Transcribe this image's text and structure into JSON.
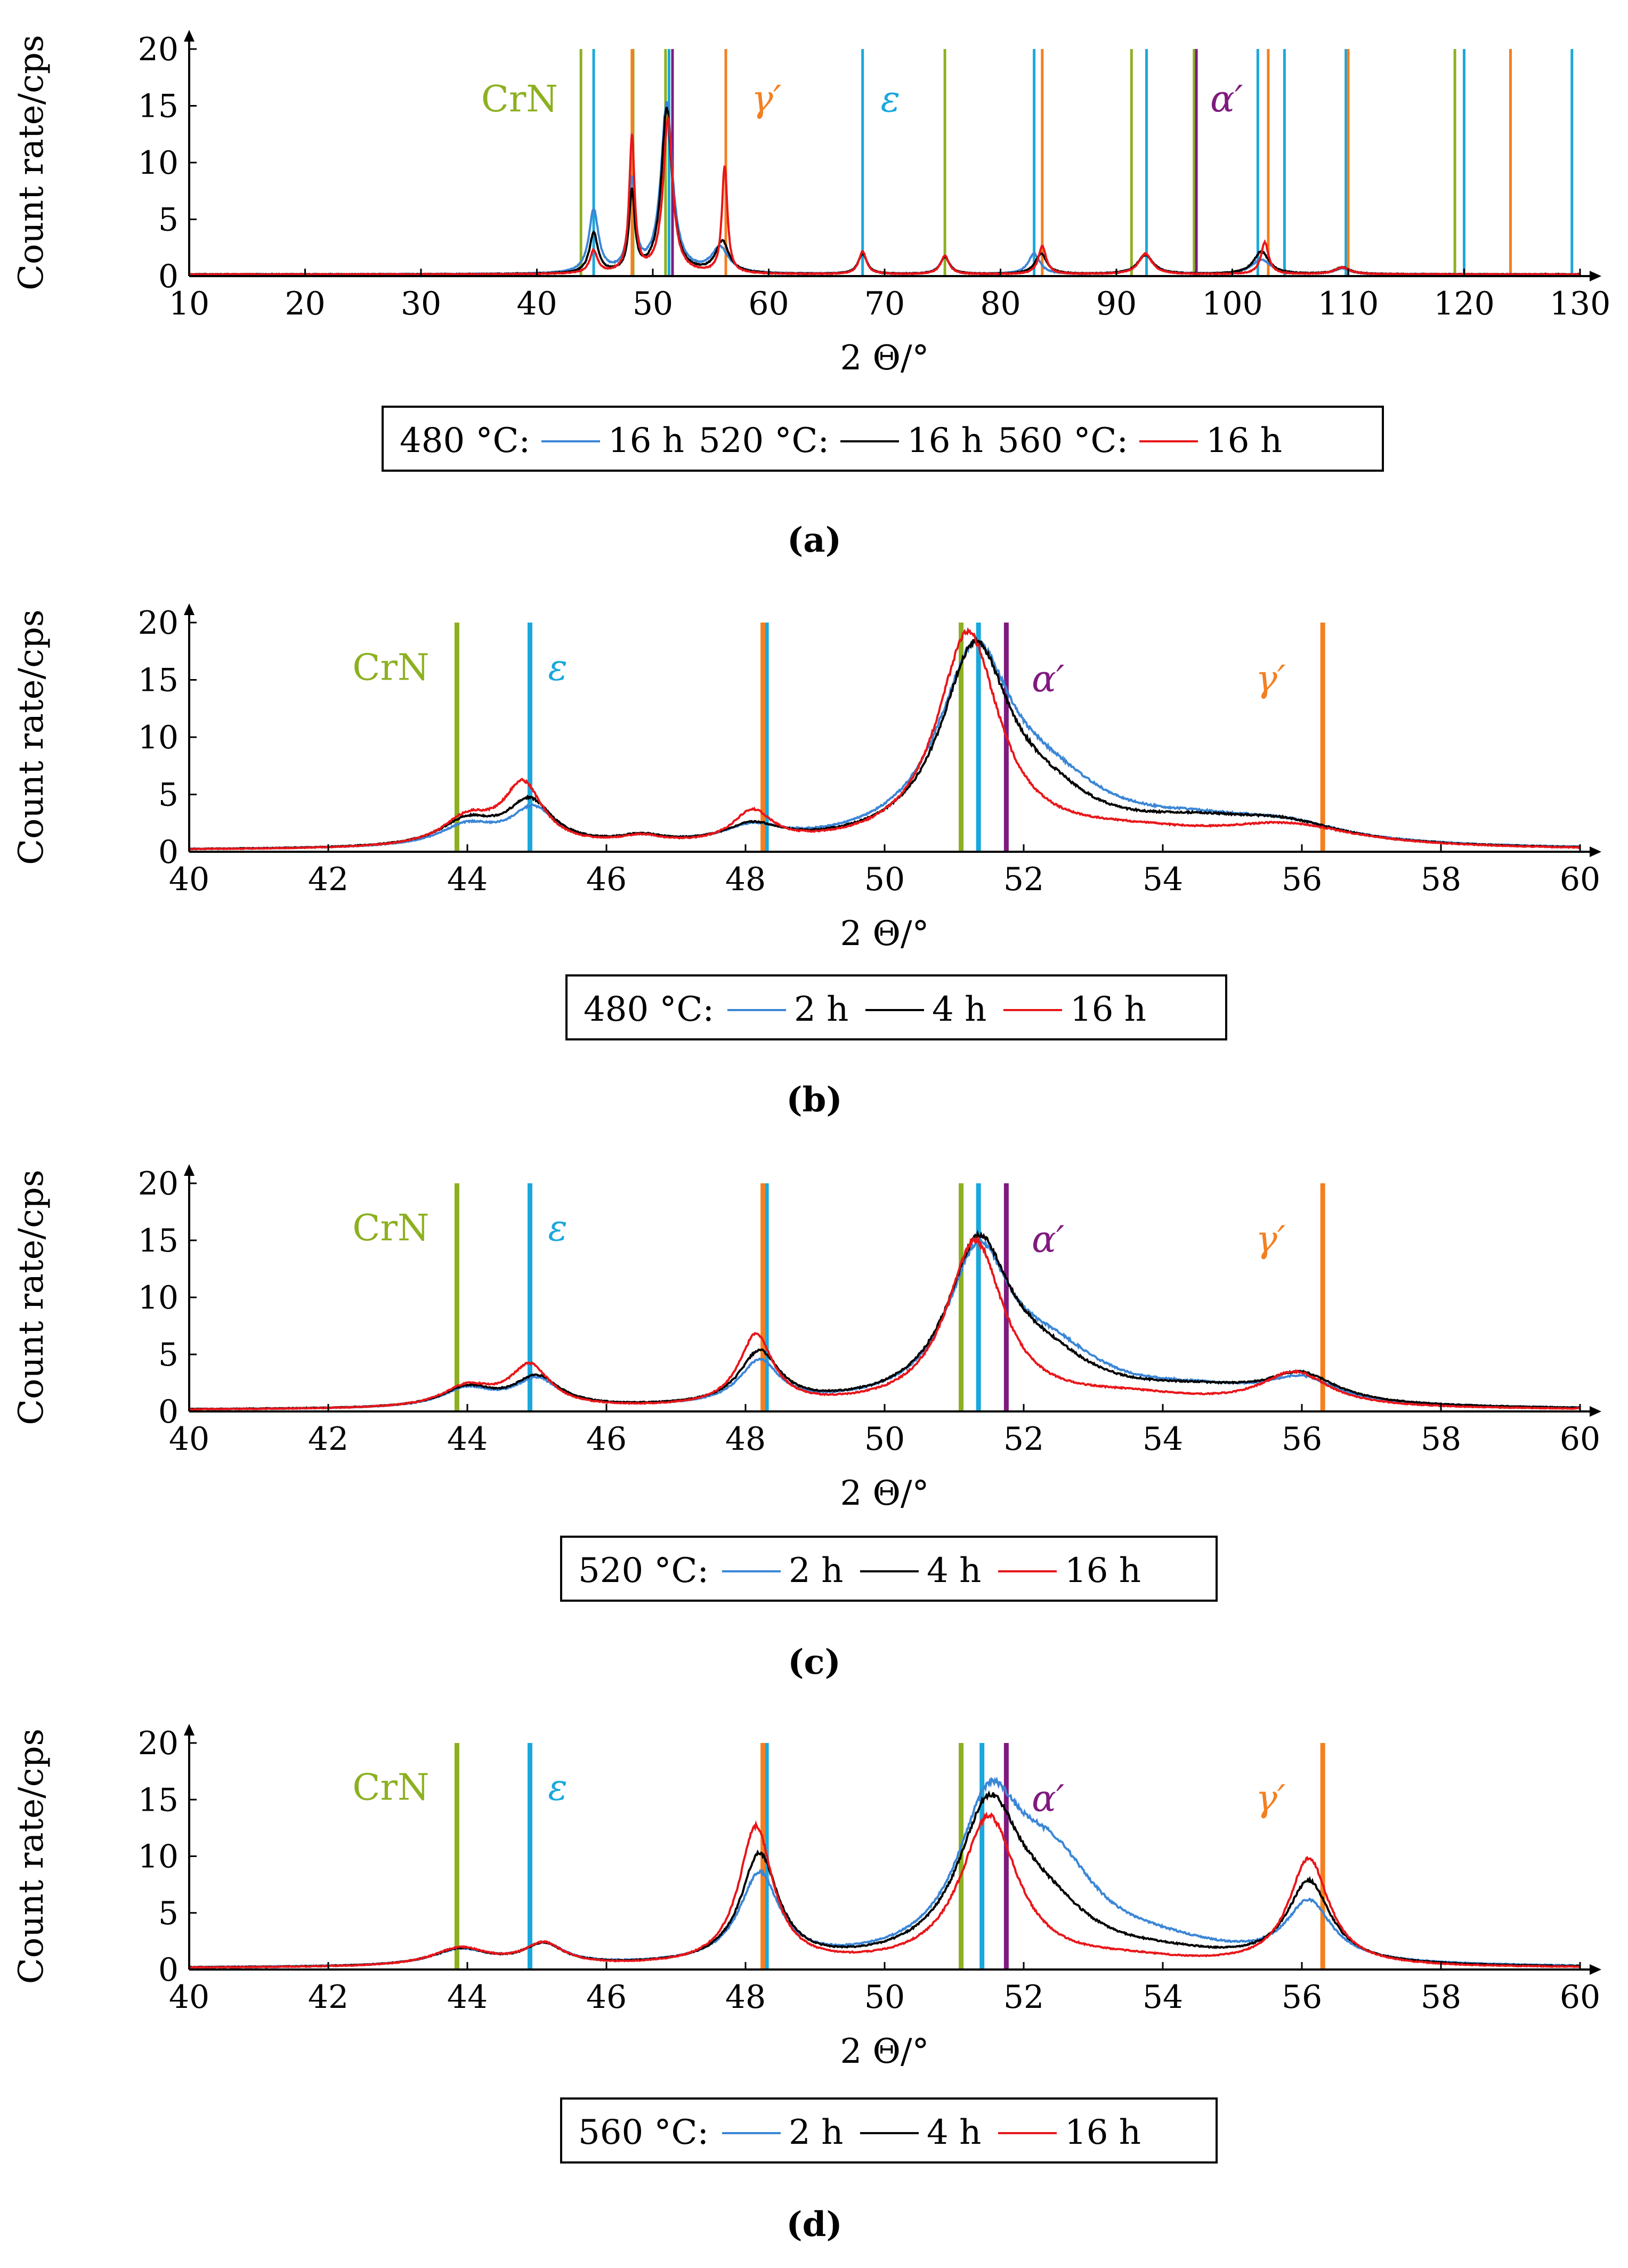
{
  "colors": {
    "blue": "#3b86d6",
    "black": "#000000",
    "red": "#e8161a",
    "crn": "#8db021",
    "epsilon": "#1aa8dc",
    "gamma": "#f47f20",
    "alpha": "#7f1a7f"
  },
  "chart_data": [
    {
      "id": "a",
      "type": "line",
      "caption": "(a)",
      "xlabel": "2 Θ/°",
      "ylabel": "Count rate/cps",
      "xlim": [
        10,
        130
      ],
      "ylim": [
        0,
        20
      ],
      "xticks": [
        10,
        20,
        30,
        40,
        50,
        60,
        70,
        80,
        90,
        100,
        110,
        120,
        130
      ],
      "yticks": [
        0,
        5,
        10,
        15,
        20
      ],
      "legend": {
        "prefix": "",
        "entries": [
          {
            "label": "480 °C:",
            "line": "blue",
            "after": "16 h"
          },
          {
            "label": "520 °C:",
            "line": "black",
            "after": "16 h"
          },
          {
            "label": "560 °C:",
            "line": "red",
            "after": "16 h"
          }
        ]
      },
      "phase_lines": {
        "CrN": [
          43.8,
          48.3,
          51.1,
          75.2,
          91.3,
          96.7,
          119.2
        ],
        "epsilon": [
          44.9,
          51.4,
          68.1,
          82.9,
          92.6,
          102.2,
          104.5,
          109.8,
          120.0,
          129.3
        ],
        "gamma": [
          48.2,
          56.3,
          83.6,
          103.1,
          110.0,
          124.0
        ],
        "alpha": [
          51.7,
          96.9
        ]
      },
      "phase_labels": [
        {
          "phase": "CrN",
          "text": "CrN",
          "x": 38.5,
          "y": 14.5
        },
        {
          "phase": "gamma",
          "text": "γ′",
          "x": 59.8,
          "y": 14.5
        },
        {
          "phase": "epsilon",
          "text": "ε",
          "x": 70.5,
          "y": 14.5
        },
        {
          "phase": "alpha",
          "text": "α′",
          "x": 99.5,
          "y": 14.5
        }
      ],
      "series": [
        {
          "name": "480 °C 16 h",
          "color": "blue",
          "peaks": [
            [
              44.9,
              5.5,
              0.5
            ],
            [
              48.2,
              8.0,
              0.35
            ],
            [
              51.2,
              15.0,
              0.6
            ],
            [
              55.8,
              2.2,
              0.9
            ],
            [
              68.1,
              1.8,
              0.45
            ],
            [
              75.2,
              1.5,
              0.5
            ],
            [
              82.9,
              1.8,
              0.6
            ],
            [
              92.5,
              1.7,
              0.8
            ],
            [
              102.5,
              1.3,
              1.0
            ],
            [
              109.5,
              0.5,
              0.8
            ]
          ],
          "baseline": 0.15
        },
        {
          "name": "520 °C 16 h",
          "color": "black",
          "peaks": [
            [
              44.9,
              3.5,
              0.45
            ],
            [
              48.2,
              7.0,
              0.3
            ],
            [
              51.2,
              14.5,
              0.55
            ],
            [
              56.0,
              2.8,
              0.7
            ],
            [
              68.1,
              1.8,
              0.45
            ],
            [
              75.2,
              1.5,
              0.5
            ],
            [
              83.5,
              1.8,
              0.6
            ],
            [
              92.5,
              1.7,
              0.8
            ],
            [
              102.5,
              2.0,
              0.8
            ],
            [
              109.5,
              0.6,
              0.8
            ]
          ],
          "baseline": 0.15
        },
        {
          "name": "560 °C 16 h",
          "color": "red",
          "peaks": [
            [
              44.9,
              2.0,
              0.4
            ],
            [
              48.2,
              12.0,
              0.28
            ],
            [
              51.3,
              13.5,
              0.5
            ],
            [
              56.2,
              9.5,
              0.28
            ],
            [
              68.1,
              2.0,
              0.4
            ],
            [
              75.2,
              1.6,
              0.45
            ],
            [
              83.6,
              2.5,
              0.4
            ],
            [
              92.5,
              1.8,
              0.7
            ],
            [
              102.8,
              2.8,
              0.4
            ],
            [
              109.5,
              0.6,
              0.8
            ]
          ],
          "baseline": 0.15
        }
      ]
    },
    {
      "id": "b",
      "type": "line",
      "caption": "(b)",
      "xlabel": "2 Θ/°",
      "ylabel": "Count rate/cps",
      "xlim": [
        40,
        60
      ],
      "ylim": [
        0,
        20
      ],
      "xticks": [
        40,
        42,
        44,
        46,
        48,
        50,
        52,
        54,
        56,
        58,
        60
      ],
      "yticks": [
        0,
        5,
        10,
        15,
        20
      ],
      "legend": {
        "prefix": "480 °C:",
        "entries": [
          {
            "label": "",
            "line": "blue",
            "after": "2 h"
          },
          {
            "label": "",
            "line": "black",
            "after": "4 h"
          },
          {
            "label": "",
            "line": "red",
            "after": "16 h"
          }
        ]
      },
      "phase_lines": {
        "CrN": [
          43.85,
          51.1
        ],
        "epsilon": [
          44.9,
          48.3,
          51.35
        ],
        "gamma": [
          48.25,
          56.3
        ],
        "alpha": [
          51.75
        ]
      },
      "phase_labels": [
        {
          "phase": "CrN",
          "text": "CrN",
          "x": 42.9,
          "y": 15.0
        },
        {
          "phase": "epsilon",
          "text": "ε",
          "x": 45.3,
          "y": 15.0
        },
        {
          "phase": "alpha",
          "text": "α′",
          "x": 52.35,
          "y": 14.0
        },
        {
          "phase": "gamma",
          "text": "γ′",
          "x": 55.55,
          "y": 14.0
        }
      ],
      "series": [
        {
          "name": "2 h",
          "color": "blue",
          "peaks": [
            [
              44.0,
              1.8,
              0.5
            ],
            [
              44.95,
              3.2,
              0.4
            ],
            [
              46.5,
              0.6,
              0.4
            ],
            [
              48.1,
              1.4,
              0.5
            ],
            [
              51.3,
              16.0,
              0.65
            ],
            [
              52.4,
              4.0,
              1.0
            ],
            [
              54.5,
              1.7,
              1.4
            ],
            [
              55.8,
              1.3,
              1.0
            ]
          ],
          "baseline": 0.1
        },
        {
          "name": "4 h",
          "color": "black",
          "peaks": [
            [
              44.0,
              2.2,
              0.5
            ],
            [
              44.9,
              3.8,
              0.4
            ],
            [
              46.5,
              0.7,
              0.4
            ],
            [
              48.1,
              1.6,
              0.5
            ],
            [
              51.3,
              16.5,
              0.6
            ],
            [
              52.3,
              3.0,
              0.9
            ],
            [
              54.5,
              1.8,
              1.4
            ],
            [
              55.8,
              1.4,
              1.0
            ]
          ],
          "baseline": 0.1
        },
        {
          "name": "16 h",
          "color": "red",
          "peaks": [
            [
              44.0,
              2.4,
              0.45
            ],
            [
              44.8,
              5.3,
              0.35
            ],
            [
              46.5,
              0.7,
              0.4
            ],
            [
              48.1,
              2.8,
              0.35
            ],
            [
              51.2,
              18.5,
              0.55
            ],
            [
              53.5,
              1.2,
              1.5
            ],
            [
              55.8,
              1.8,
              1.2
            ]
          ],
          "baseline": 0.1
        }
      ]
    },
    {
      "id": "c",
      "type": "line",
      "caption": "(c)",
      "xlabel": "2 Θ/°",
      "ylabel": "Count rate/cps",
      "xlim": [
        40,
        60
      ],
      "ylim": [
        0,
        20
      ],
      "xticks": [
        40,
        42,
        44,
        46,
        48,
        50,
        52,
        54,
        56,
        58,
        60
      ],
      "yticks": [
        0,
        5,
        10,
        15,
        20
      ],
      "legend": {
        "prefix": "520 °C:",
        "entries": [
          {
            "label": "",
            "line": "blue",
            "after": "2 h"
          },
          {
            "label": "",
            "line": "black",
            "after": "4 h"
          },
          {
            "label": "",
            "line": "red",
            "after": "16 h"
          }
        ]
      },
      "phase_lines": {
        "CrN": [
          43.85,
          51.1
        ],
        "epsilon": [
          44.9,
          48.3,
          51.35
        ],
        "gamma": [
          48.25,
          56.3
        ],
        "alpha": [
          51.75
        ]
      },
      "phase_labels": [
        {
          "phase": "CrN",
          "text": "CrN",
          "x": 42.9,
          "y": 15.0
        },
        {
          "phase": "epsilon",
          "text": "ε",
          "x": 45.3,
          "y": 15.0
        },
        {
          "phase": "alpha",
          "text": "α′",
          "x": 52.35,
          "y": 14.0
        },
        {
          "phase": "gamma",
          "text": "γ′",
          "x": 55.55,
          "y": 14.0
        }
      ],
      "series": [
        {
          "name": "2 h",
          "color": "blue",
          "peaks": [
            [
              44.0,
              1.6,
              0.45
            ],
            [
              45.0,
              2.4,
              0.4
            ],
            [
              48.2,
              3.8,
              0.35
            ],
            [
              51.35,
              12.8,
              0.55
            ],
            [
              52.4,
              4.0,
              0.9
            ],
            [
              54.5,
              1.3,
              1.4
            ],
            [
              56.0,
              2.0,
              0.6
            ]
          ],
          "baseline": 0.1
        },
        {
          "name": "4 h",
          "color": "black",
          "peaks": [
            [
              44.0,
              1.7,
              0.45
            ],
            [
              45.0,
              2.6,
              0.4
            ],
            [
              48.2,
              4.6,
              0.35
            ],
            [
              51.35,
              13.5,
              0.55
            ],
            [
              52.3,
              3.2,
              0.9
            ],
            [
              54.5,
              1.3,
              1.4
            ],
            [
              56.0,
              2.4,
              0.6
            ]
          ],
          "baseline": 0.1
        },
        {
          "name": "16 h",
          "color": "red",
          "peaks": [
            [
              44.0,
              1.8,
              0.45
            ],
            [
              44.9,
              3.6,
              0.35
            ],
            [
              48.15,
              6.2,
              0.3
            ],
            [
              51.3,
              14.5,
              0.5
            ],
            [
              53.5,
              1.0,
              1.3
            ],
            [
              55.9,
              3.0,
              0.6
            ]
          ],
          "baseline": 0.1
        }
      ]
    },
    {
      "id": "d",
      "type": "line",
      "caption": "(d)",
      "xlabel": "2 Θ/°",
      "ylabel": "Count rate/cps",
      "xlim": [
        40,
        60
      ],
      "ylim": [
        0,
        20
      ],
      "xticks": [
        40,
        42,
        44,
        46,
        48,
        50,
        52,
        54,
        56,
        58,
        60
      ],
      "yticks": [
        0,
        5,
        10,
        15,
        20
      ],
      "legend": {
        "prefix": "560 °C:",
        "entries": [
          {
            "label": "",
            "line": "blue",
            "after": "2 h"
          },
          {
            "label": "",
            "line": "black",
            "after": "4 h"
          },
          {
            "label": "",
            "line": "red",
            "after": "16 h"
          }
        ]
      },
      "phase_lines": {
        "CrN": [
          43.85,
          51.1
        ],
        "epsilon": [
          44.9,
          48.3,
          51.4
        ],
        "gamma": [
          48.25,
          56.3
        ],
        "alpha": [
          51.75
        ]
      },
      "phase_labels": [
        {
          "phase": "CrN",
          "text": "CrN",
          "x": 42.9,
          "y": 15.0
        },
        {
          "phase": "epsilon",
          "text": "ε",
          "x": 45.3,
          "y": 15.0
        },
        {
          "phase": "alpha",
          "text": "α′",
          "x": 52.35,
          "y": 14.0
        },
        {
          "phase": "gamma",
          "text": "γ′",
          "x": 55.55,
          "y": 14.0
        }
      ],
      "series": [
        {
          "name": "2 h",
          "color": "blue",
          "peaks": [
            [
              43.9,
              1.4,
              0.5
            ],
            [
              45.1,
              1.8,
              0.35
            ],
            [
              48.2,
              7.8,
              0.35
            ],
            [
              51.5,
              12.5,
              0.55
            ],
            [
              52.4,
              8.0,
              0.8
            ],
            [
              54.0,
              1.3,
              1.2
            ],
            [
              56.1,
              5.2,
              0.4
            ]
          ],
          "baseline": 0.1
        },
        {
          "name": "4 h",
          "color": "black",
          "peaks": [
            [
              43.9,
              1.5,
              0.5
            ],
            [
              45.1,
              1.8,
              0.35
            ],
            [
              48.2,
              9.6,
              0.33
            ],
            [
              51.5,
              13.0,
              0.55
            ],
            [
              52.3,
              4.0,
              0.8
            ],
            [
              54.0,
              0.8,
              1.2
            ],
            [
              56.1,
              7.2,
              0.38
            ]
          ],
          "baseline": 0.1
        },
        {
          "name": "16 h",
          "color": "red",
          "peaks": [
            [
              43.9,
              1.6,
              0.5
            ],
            [
              45.1,
              1.9,
              0.35
            ],
            [
              48.15,
              12.2,
              0.3
            ],
            [
              51.5,
              13.2,
              0.5
            ],
            [
              53.5,
              0.6,
              1.0
            ],
            [
              56.1,
              9.5,
              0.35
            ]
          ],
          "baseline": 0.1
        }
      ]
    }
  ]
}
